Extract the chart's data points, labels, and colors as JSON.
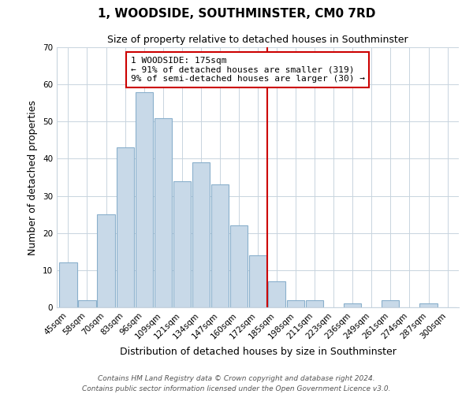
{
  "title": "1, WOODSIDE, SOUTHMINSTER, CM0 7RD",
  "subtitle": "Size of property relative to detached houses in Southminster",
  "xlabel": "Distribution of detached houses by size in Southminster",
  "ylabel": "Number of detached properties",
  "bar_labels": [
    "45sqm",
    "58sqm",
    "70sqm",
    "83sqm",
    "96sqm",
    "109sqm",
    "121sqm",
    "134sqm",
    "147sqm",
    "160sqm",
    "172sqm",
    "185sqm",
    "198sqm",
    "211sqm",
    "223sqm",
    "236sqm",
    "249sqm",
    "261sqm",
    "274sqm",
    "287sqm",
    "300sqm"
  ],
  "bar_values": [
    12,
    2,
    25,
    43,
    58,
    51,
    34,
    39,
    33,
    22,
    14,
    7,
    2,
    2,
    0,
    1,
    0,
    2,
    0,
    1,
    0
  ],
  "bar_color": "#c8d9e8",
  "bar_edge_color": "#8ab0cc",
  "vline_x_index": 10.5,
  "vline_color": "#cc0000",
  "annotation_text_line1": "1 WOODSIDE: 175sqm",
  "annotation_text_line2": "← 91% of detached houses are smaller (319)",
  "annotation_text_line3": "9% of semi-detached houses are larger (30) →",
  "annotation_box_color": "#ffffff",
  "annotation_box_edge": "#cc0000",
  "ylim": [
    0,
    70
  ],
  "yticks": [
    0,
    10,
    20,
    30,
    40,
    50,
    60,
    70
  ],
  "footer_line1": "Contains HM Land Registry data © Crown copyright and database right 2024.",
  "footer_line2": "Contains public sector information licensed under the Open Government Licence v3.0.",
  "background_color": "#ffffff",
  "grid_color": "#c8d4de",
  "title_fontsize": 11,
  "subtitle_fontsize": 9,
  "xlabel_fontsize": 9,
  "ylabel_fontsize": 9,
  "tick_fontsize": 7.5,
  "annotation_fontsize": 8,
  "footer_fontsize": 6.5
}
